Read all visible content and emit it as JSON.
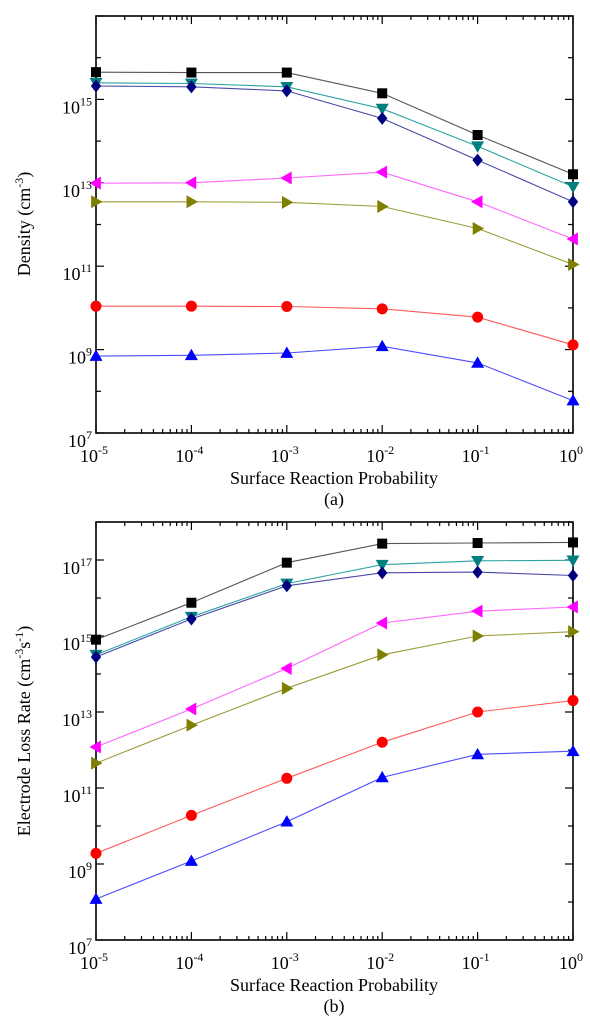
{
  "chart_data": [
    {
      "type": "line",
      "panel_label": "(a)",
      "xlabel": "Surface Reaction Probability",
      "ylabel": "Density (cm",
      "ylabel_sup": "-3",
      "ylabel_tail": ")",
      "x_scale": "log",
      "y_scale": "log",
      "xlim": [
        1e-05,
        1
      ],
      "ylim": [
        10000000,
        100000000000000000
      ],
      "x_ticks": [
        {
          "base": "10",
          "exp": "-5"
        },
        {
          "base": "10",
          "exp": "-4"
        },
        {
          "base": "10",
          "exp": "-3"
        },
        {
          "base": "10",
          "exp": "-2"
        },
        {
          "base": "10",
          "exp": "-1"
        },
        {
          "base": "10",
          "exp": "0"
        }
      ],
      "y_ticks": [
        {
          "base": "10",
          "exp": "7"
        },
        {
          "base": "10",
          "exp": "9"
        },
        {
          "base": "10",
          "exp": "11"
        },
        {
          "base": "10",
          "exp": "13"
        },
        {
          "base": "10",
          "exp": "15"
        }
      ],
      "x": [
        1e-05,
        0.0001,
        0.001,
        0.01,
        0.1,
        1
      ],
      "series": [
        {
          "marker": "square",
          "color": "#000000",
          "line": "#555555",
          "values": [
            4500000000000000.0,
            4400000000000000.0,
            4400000000000000.0,
            1400000000000000.0,
            140000000000000.0,
            16000000000000.0
          ]
        },
        {
          "marker": "triangle-down",
          "color": "#007f7f",
          "line": "#2fa3a3",
          "values": [
            2500000000000000.0,
            2400000000000000.0,
            2000000000000000.0,
            600000000000000.0,
            75000000000000.0,
            8000000000000.0
          ]
        },
        {
          "marker": "diamond",
          "color": "#00007f",
          "line": "#4a4aa8",
          "values": [
            2100000000000000.0,
            2000000000000000.0,
            1600000000000000.0,
            350000000000000.0,
            35000000000000.0,
            3500000000000.0
          ]
        },
        {
          "marker": "triangle-left",
          "color": "#ff00ff",
          "line": "#ff66ff",
          "values": [
            9800000000000.0,
            10000000000000.0,
            13000000000000.0,
            18000000000000.0,
            3500000000000.0,
            450000000000.0
          ]
        },
        {
          "marker": "triangle-right",
          "color": "#7f7f00",
          "line": "#9c9c3a",
          "values": [
            3500000000000.0,
            3500000000000.0,
            3400000000000.0,
            2700000000000.0,
            800000000000.0,
            110000000000.0
          ]
        },
        {
          "marker": "circle",
          "color": "#ff0000",
          "line": "#ff5a5a",
          "values": [
            11000000000.0,
            11000000000.0,
            10800000000.0,
            9500000000.0,
            6000000000.0,
            1300000000.0
          ]
        },
        {
          "marker": "triangle-up",
          "color": "#0000ff",
          "line": "#4d4dff",
          "values": [
            700000000.0,
            730000000.0,
            830000000.0,
            1200000000.0,
            480000000.0,
            60000000.0
          ]
        }
      ]
    },
    {
      "type": "line",
      "panel_label": "(b)",
      "xlabel": "Surface Reaction Probability",
      "ylabel": "Electrode Loss Rate (cm",
      "ylabel_sup": "-3",
      "ylabel_mid": "s",
      "ylabel_sup2": "-1",
      "ylabel_tail": ")",
      "x_scale": "log",
      "y_scale": "log",
      "xlim": [
        1e-05,
        1
      ],
      "ylim": [
        10000000,
        1000000000000000000
      ],
      "x_ticks": [
        {
          "base": "10",
          "exp": "-5"
        },
        {
          "base": "10",
          "exp": "-4"
        },
        {
          "base": "10",
          "exp": "-3"
        },
        {
          "base": "10",
          "exp": "-2"
        },
        {
          "base": "10",
          "exp": "-1"
        },
        {
          "base": "10",
          "exp": "0"
        }
      ],
      "y_ticks": [
        {
          "base": "10",
          "exp": "7"
        },
        {
          "base": "10",
          "exp": "9"
        },
        {
          "base": "10",
          "exp": "11"
        },
        {
          "base": "10",
          "exp": "13"
        },
        {
          "base": "10",
          "exp": "15"
        },
        {
          "base": "10",
          "exp": "17"
        }
      ],
      "x": [
        1e-05,
        0.0001,
        0.001,
        0.01,
        0.1,
        1
      ],
      "series": [
        {
          "marker": "square",
          "color": "#000000",
          "line": "#555555",
          "values": [
            800000000000000.0,
            7500000000000000.0,
            8.5e+16,
            2.7e+17,
            2.8e+17,
            2.9e+17
          ]
        },
        {
          "marker": "triangle-down",
          "color": "#007f7f",
          "line": "#2fa3a3",
          "values": [
            320000000000000.0,
            3200000000000000.0,
            2.4e+16,
            7.5e+16,
            9.5e+16,
            9.8e+16
          ]
        },
        {
          "marker": "diamond",
          "color": "#00007f",
          "line": "#4a4aa8",
          "values": [
            280000000000000.0,
            2800000000000000.0,
            2.1e+16,
            4.6e+16,
            4.8e+16,
            3.9e+16
          ]
        },
        {
          "marker": "triangle-left",
          "color": "#ff00ff",
          "line": "#ff66ff",
          "values": [
            1200000000000.0,
            12000000000000.0,
            140000000000000.0,
            2200000000000000.0,
            4500000000000000.0,
            5800000000000000.0
          ]
        },
        {
          "marker": "triangle-right",
          "color": "#7f7f00",
          "line": "#9c9c3a",
          "values": [
            450000000000.0,
            4500000000000.0,
            42000000000000.0,
            320000000000000.0,
            1000000000000000.0,
            1300000000000000.0
          ]
        },
        {
          "marker": "circle",
          "color": "#ff0000",
          "line": "#ff5a5a",
          "values": [
            1900000000.0,
            19000000000.0,
            180000000000.0,
            1600000000000.0,
            10000000000000.0,
            20000000000000.0
          ]
        },
        {
          "marker": "triangle-up",
          "color": "#0000ff",
          "line": "#4d4dff",
          "values": [
            120000000.0,
            1200000000.0,
            13000000000.0,
            190000000000.0,
            770000000000.0,
            930000000000.0
          ]
        }
      ]
    }
  ]
}
